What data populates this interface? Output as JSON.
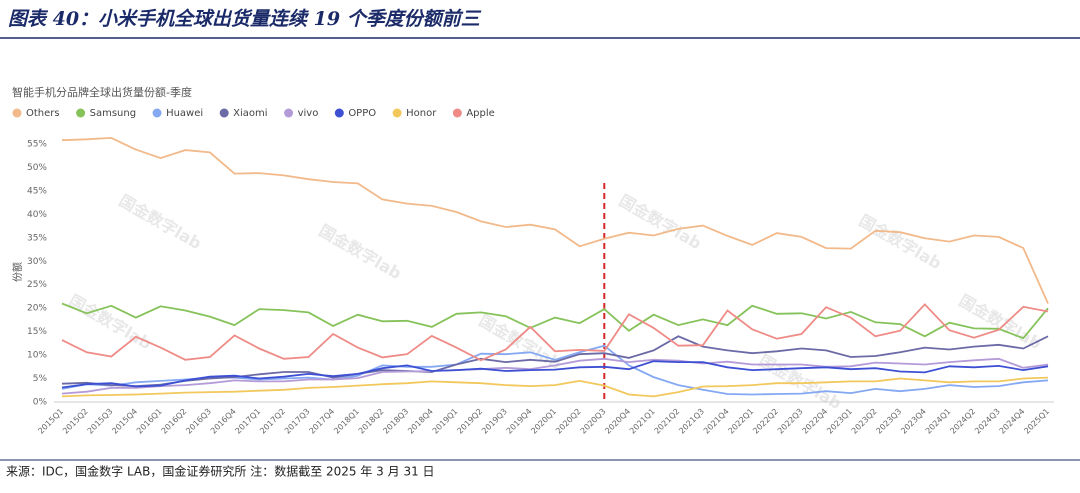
{
  "header": {
    "title": "图表 40：小米手机全球出货量连续 19 个季度份额前三"
  },
  "chart_data": {
    "type": "line",
    "title": "智能手机分品牌全球出货量份额-季度",
    "y_label": "份额",
    "watermark": "国金数字lab",
    "vline_category": "2020Q3",
    "vline_color": "#d62728",
    "grid": false,
    "legend": "top-left",
    "categories": [
      "2015Q1",
      "2015Q2",
      "2015Q3",
      "2015Q4",
      "2016Q1",
      "2016Q2",
      "2016Q3",
      "2016Q4",
      "2017Q1",
      "2017Q2",
      "2017Q3",
      "2017Q4",
      "2018Q1",
      "2018Q2",
      "2018Q3",
      "2018Q4",
      "2019Q1",
      "2019Q2",
      "2019Q3",
      "2019Q4",
      "2020Q1",
      "2020Q2",
      "2020Q3",
      "2020Q4",
      "2021Q1",
      "2021Q2",
      "2021Q3",
      "2021Q4",
      "2022Q1",
      "2022Q2",
      "2022Q3",
      "2022Q4",
      "2023Q1",
      "2023Q2",
      "2023Q3",
      "2023Q4",
      "2024Q1",
      "2024Q2",
      "2024Q3",
      "2024Q4",
      "2025Q1"
    ],
    "ylim": [
      0,
      55
    ],
    "yticks": [
      {
        "value": 0,
        "label": "0%"
      },
      {
        "value": 5,
        "label": "5%"
      },
      {
        "value": 10,
        "label": "10%"
      },
      {
        "value": 15,
        "label": "15%"
      },
      {
        "value": 20,
        "label": "20%"
      },
      {
        "value": 25,
        "label": "25%"
      },
      {
        "value": 30,
        "label": "30%"
      },
      {
        "value": 35,
        "label": "35%"
      },
      {
        "value": 40,
        "label": "40%"
      },
      {
        "value": 45,
        "label": "45%"
      },
      {
        "value": 50,
        "label": "50%"
      },
      {
        "value": 55,
        "label": "55%"
      }
    ],
    "series": [
      {
        "name": "Others",
        "color": "#f2b98a",
        "values": [
          55.8,
          56,
          56.3,
          53.8,
          52,
          53.7,
          53.2,
          48.7,
          48.8,
          48.3,
          47.5,
          46.9,
          46.6,
          43.2,
          42.3,
          41.8,
          40.5,
          38.5,
          37.3,
          37.8,
          36.8,
          33.2,
          34.8,
          36.1,
          35.5,
          36.9,
          37.6,
          35.4,
          33.5,
          36,
          35.2,
          32.8,
          32.7,
          36.5,
          36.2,
          34.9,
          34.2,
          35.5,
          35.2,
          32.8,
          21
        ]
      },
      {
        "name": "Samsung",
        "color": "#86c25a",
        "values": [
          21,
          18.9,
          20.5,
          18,
          20.4,
          19.5,
          18.2,
          16.4,
          19.8,
          19.6,
          19.1,
          16.2,
          18.6,
          17.2,
          17.3,
          16,
          18.8,
          19.1,
          18.3,
          15.8,
          18,
          16.8,
          19.8,
          15.2,
          18.6,
          16.4,
          17.6,
          16.4,
          20.5,
          18.8,
          18.9,
          17.8,
          19.2,
          17,
          16.6,
          14,
          16.9,
          15.7,
          15.6,
          13.6,
          20
        ]
      },
      {
        "name": "Huawei",
        "color": "#84a8f2",
        "values": [
          2.8,
          3.8,
          3.5,
          4.2,
          4.5,
          4.8,
          5.2,
          5.2,
          4.8,
          5,
          5.2,
          4.8,
          5.6,
          7.8,
          7.5,
          7.5,
          8,
          10.3,
          10.2,
          10.6,
          9,
          10.6,
          12,
          7.8,
          5.3,
          3.6,
          2.6,
          1.7,
          1.6,
          1.7,
          1.8,
          2.3,
          1.9,
          2.8,
          2.3,
          2.8,
          3.6,
          3.2,
          3.4,
          4.2,
          4.6
        ]
      },
      {
        "name": "Xiaomi",
        "color": "#6b6aa6",
        "values": [
          3.9,
          4.1,
          3.6,
          3.4,
          3.7,
          4.5,
          5,
          5.3,
          5.9,
          6.4,
          6.4,
          5.2,
          6,
          6.8,
          6.6,
          6.4,
          8,
          9.2,
          8.5,
          9,
          8.6,
          10.2,
          10.4,
          9.4,
          11,
          14,
          11.8,
          11,
          10.4,
          10.8,
          11.4,
          11,
          9.6,
          9.8,
          10.6,
          11.6,
          11.2,
          11.8,
          12.2,
          11.4,
          14
        ]
      },
      {
        "name": "vivo",
        "color": "#b49bd8",
        "values": [
          1.8,
          2.2,
          3,
          3,
          3.4,
          3.6,
          4,
          4.6,
          4.4,
          4.4,
          4.8,
          4.8,
          5.1,
          6.4,
          6.5,
          6.6,
          6.8,
          7,
          7.3,
          7,
          7.8,
          8.8,
          9.2,
          8.5,
          9,
          8.8,
          8.2,
          8.6,
          8,
          8,
          8,
          7.5,
          7.6,
          8.4,
          8.2,
          8,
          8.5,
          8.9,
          9.2,
          7.3,
          8
        ]
      },
      {
        "name": "OPPO",
        "color": "#3d50d4",
        "values": [
          3.1,
          3.8,
          4,
          3.3,
          3.5,
          4.6,
          5.4,
          5.6,
          5,
          5.4,
          6,
          5.5,
          6,
          7.2,
          7.8,
          6.6,
          6.8,
          7.1,
          6.6,
          6.8,
          6.9,
          7.4,
          7.5,
          7,
          8.7,
          8.5,
          8.5,
          7.4,
          6.8,
          7,
          7.2,
          7.4,
          7,
          7.2,
          6.5,
          6.3,
          7.6,
          7.4,
          7.7,
          6.8,
          7.6
        ]
      },
      {
        "name": "Honor",
        "color": "#f2c85c",
        "values": [
          1.2,
          1.4,
          1.5,
          1.6,
          1.8,
          2,
          2.1,
          2.2,
          2.4,
          2.6,
          3,
          3.2,
          3.5,
          3.8,
          4,
          4.4,
          4.2,
          4,
          3.6,
          3.4,
          3.6,
          4.5,
          3.5,
          1.6,
          1.2,
          2.1,
          3.3,
          3.4,
          3.6,
          4,
          4,
          4.2,
          4.4,
          4.4,
          5,
          4.6,
          4.2,
          4.4,
          4.4,
          5,
          5.2
        ]
      },
      {
        "name": "Apple",
        "color": "#ef8b86",
        "values": [
          13.2,
          10.6,
          9.7,
          13.9,
          11.6,
          9,
          9.6,
          14.2,
          11.4,
          9.2,
          9.6,
          14.5,
          11.6,
          9.5,
          10.2,
          14.1,
          11.6,
          8.9,
          11.2,
          16,
          10.8,
          11.1,
          10.9,
          18.7,
          15.8,
          12,
          12.1,
          19.5,
          15.5,
          13.5,
          14.5,
          20.2,
          18,
          14,
          15.2,
          20.8,
          15.3,
          13.7,
          15.4,
          20.3,
          19.3
        ]
      }
    ]
  },
  "footer": {
    "source": "来源：IDC，国金数字 LAB，国金证券研究所 注：数据截至 2025 年 3 月 31 日"
  }
}
